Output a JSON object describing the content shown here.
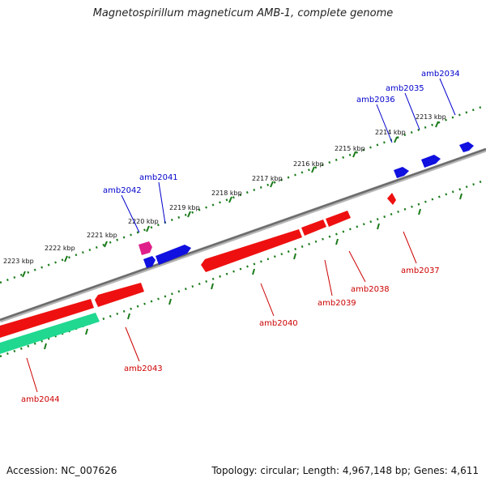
{
  "title": "Magnetospirillum magneticum AMB-1, complete genome",
  "accession": "Accession: NC_007626",
  "summary": "Topology: circular; Length: 4,967,148 bp; Genes: 4,611",
  "colors": {
    "backbone": "#7a7a7a",
    "upper_track": "#1a7a1a",
    "lower_track": "#1a7a1a",
    "forward_gene_label": "#0000cc",
    "reverse_gene_label": "#cc0000",
    "blue_gene": "#1010e0",
    "red_gene": "#ee1010",
    "magenta_gene": "#e0208a",
    "teal_gene": "#20d890"
  },
  "scale_labels": [
    "2223 kbp",
    "2222 kbp",
    "2221 kbp",
    "2220 kbp",
    "2219 kbp",
    "2218 kbp",
    "2217 kbp",
    "2216 kbp",
    "2215 kbp",
    "2214 kbp",
    "2213 kbp"
  ],
  "forward_genes": [
    {
      "name": "amb2034"
    },
    {
      "name": "amb2035"
    },
    {
      "name": "amb2036"
    },
    {
      "name": "amb2041"
    },
    {
      "name": "amb2042"
    }
  ],
  "reverse_genes": [
    {
      "name": "amb2037"
    },
    {
      "name": "amb2038"
    },
    {
      "name": "amb2039"
    },
    {
      "name": "amb2040"
    },
    {
      "name": "amb2043"
    },
    {
      "name": "amb2044"
    }
  ]
}
